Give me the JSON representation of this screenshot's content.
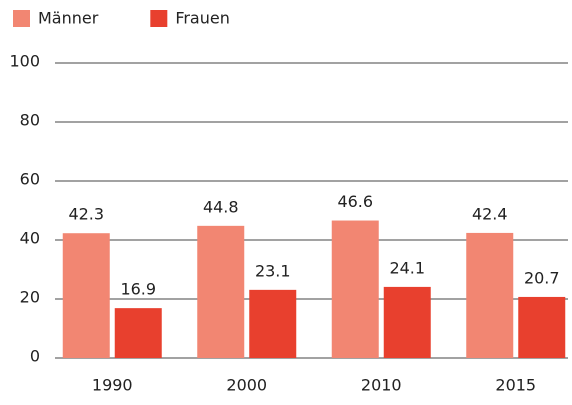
{
  "chart_data": {
    "type": "bar",
    "categories": [
      "1990",
      "2000",
      "2010",
      "2015"
    ],
    "series": [
      {
        "name": "Männer",
        "color": "#f28672",
        "values": [
          42.3,
          44.8,
          46.6,
          42.4
        ]
      },
      {
        "name": "Frauen",
        "color": "#e8402e",
        "values": [
          16.9,
          23.1,
          24.1,
          20.7
        ]
      }
    ],
    "ylim": [
      0,
      100
    ],
    "yticks": [
      0,
      20,
      40,
      60,
      80,
      100
    ],
    "grid": true,
    "legend": "top-left"
  }
}
